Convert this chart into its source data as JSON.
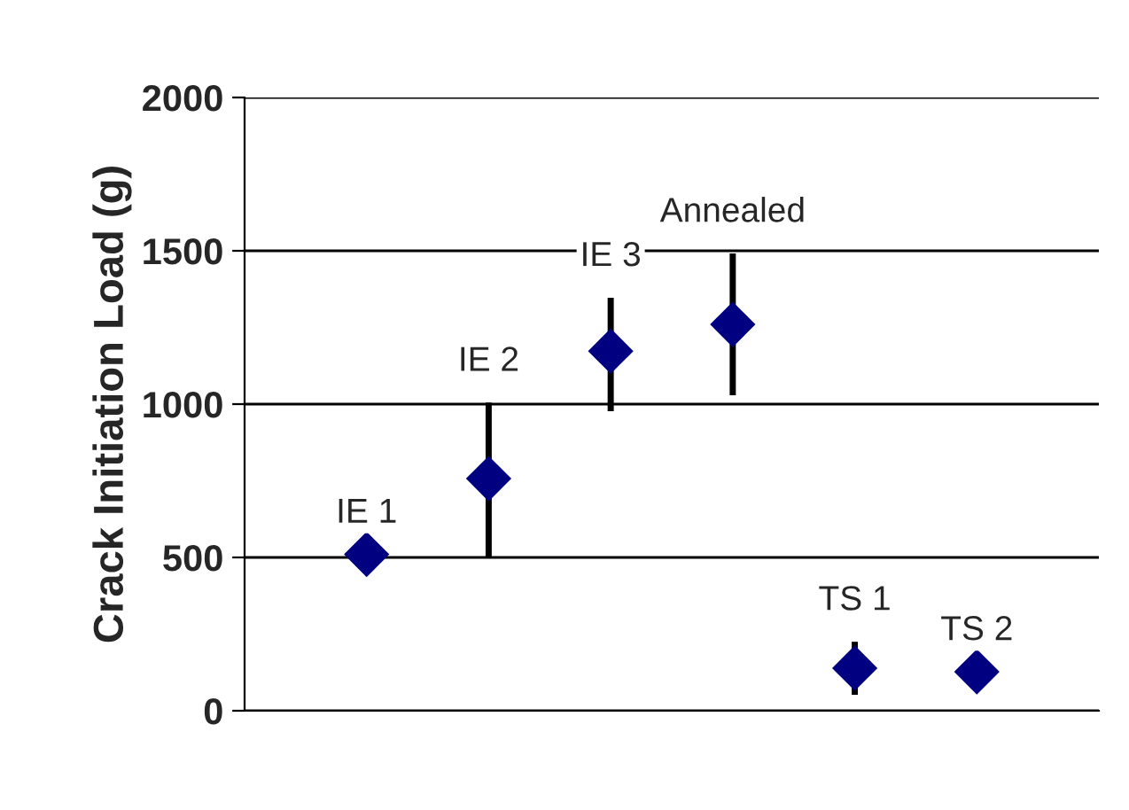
{
  "chart_data": {
    "type": "scatter",
    "ylabel": "Crack Initiation Load (g)",
    "categories": [
      null,
      null,
      null,
      null,
      null,
      null
    ],
    "values": [
      510,
      757,
      1173,
      1260,
      139,
      127
    ],
    "errors": [
      null,
      [
        500,
        1005
      ],
      [
        977,
        1347
      ],
      [
        1029,
        1491
      ],
      [
        52,
        225
      ],
      null
    ],
    "color": "#000080",
    "marker": "diamond",
    "ylim": [
      0,
      2000
    ],
    "yticks": [
      0,
      500,
      1000,
      1500,
      2000
    ],
    "grid": "y",
    "annotations": [
      "IE 1",
      "IE 2",
      "IE 3",
      "Annealed",
      "TS 1",
      "TS 2"
    ]
  }
}
